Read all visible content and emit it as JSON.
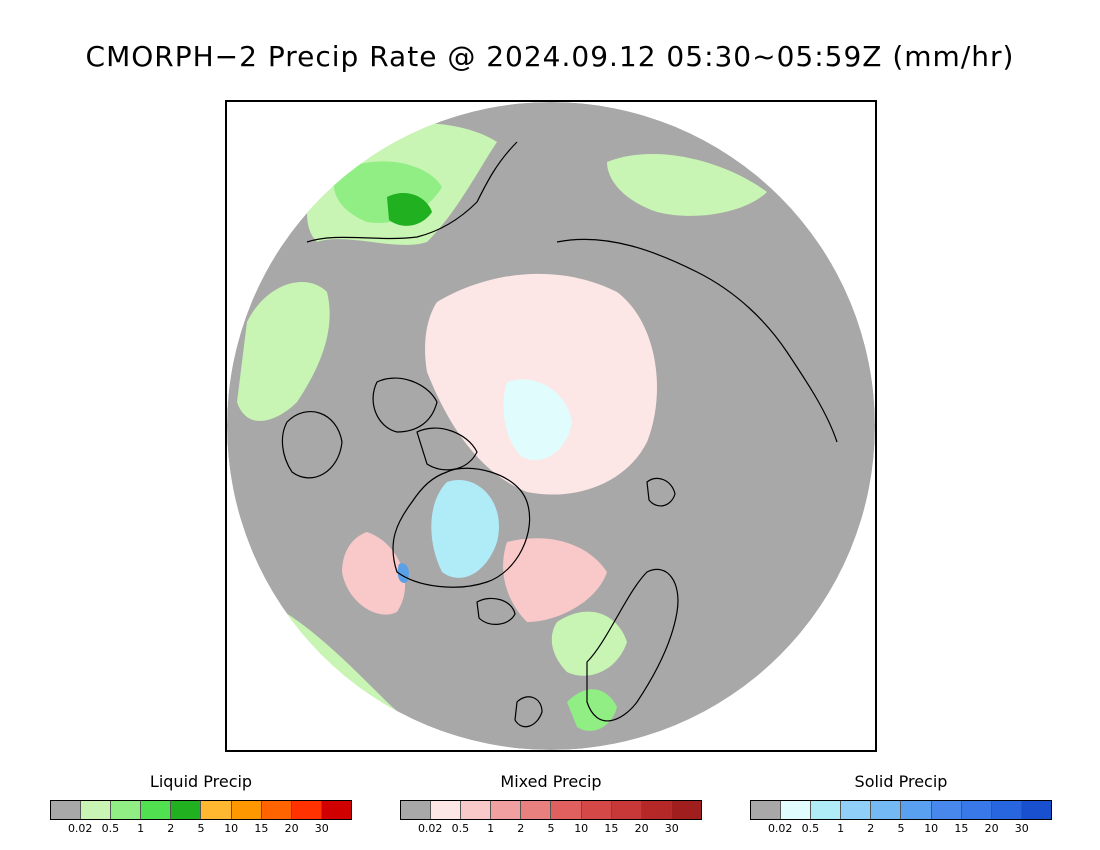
{
  "title": "CMORPH−2 Precip Rate @ 2024.09.12 05:30~05:59Z (mm/hr)",
  "map": {
    "projection": "north-polar-stereographic",
    "background_color": "#a8a8a8",
    "coastline_color": "#000000",
    "precip_patches": [
      {
        "type": "liquid",
        "intensity": "0.5",
        "color": "#c8f5b4"
      },
      {
        "type": "liquid",
        "intensity": "1",
        "color": "#90ee84"
      },
      {
        "type": "liquid",
        "intensity": "2",
        "color": "#50e050"
      },
      {
        "type": "liquid",
        "intensity": "5",
        "color": "#20b020"
      },
      {
        "type": "mixed",
        "intensity": "0.02",
        "color": "#fde6e6"
      },
      {
        "type": "mixed",
        "intensity": "0.5",
        "color": "#f9c8c8"
      },
      {
        "type": "solid",
        "intensity": "0.02",
        "color": "#e0fcfc"
      },
      {
        "type": "solid",
        "intensity": "0.5",
        "color": "#b0ecf8"
      },
      {
        "type": "solid",
        "intensity": "2",
        "color": "#5aa0e8"
      }
    ]
  },
  "legends": [
    {
      "title": "Liquid Precip",
      "colors": [
        "#a8a8a8",
        "#c8f5b4",
        "#90ee84",
        "#50e050",
        "#20b020",
        "#ffb830",
        "#ff9800",
        "#ff6400",
        "#ff3200",
        "#d00000"
      ],
      "ticks": [
        "0.02",
        "0.5",
        "1",
        "2",
        "5",
        "10",
        "15",
        "20",
        "30"
      ]
    },
    {
      "title": "Mixed Precip",
      "colors": [
        "#a8a8a8",
        "#fde6e6",
        "#f9c8c8",
        "#f0a0a0",
        "#e88080",
        "#e06060",
        "#d44848",
        "#c83838",
        "#b42828",
        "#a01e1e"
      ],
      "ticks": [
        "0.02",
        "0.5",
        "1",
        "2",
        "5",
        "10",
        "15",
        "20",
        "30"
      ]
    },
    {
      "title": "Solid Precip",
      "colors": [
        "#a8a8a8",
        "#e0fcfc",
        "#b0ecf8",
        "#90d0f8",
        "#74b8f4",
        "#5aa0f0",
        "#4888ec",
        "#3878e8",
        "#2866e0",
        "#1850d0"
      ],
      "ticks": [
        "0.02",
        "0.5",
        "1",
        "2",
        "5",
        "10",
        "15",
        "20",
        "30"
      ]
    }
  ]
}
